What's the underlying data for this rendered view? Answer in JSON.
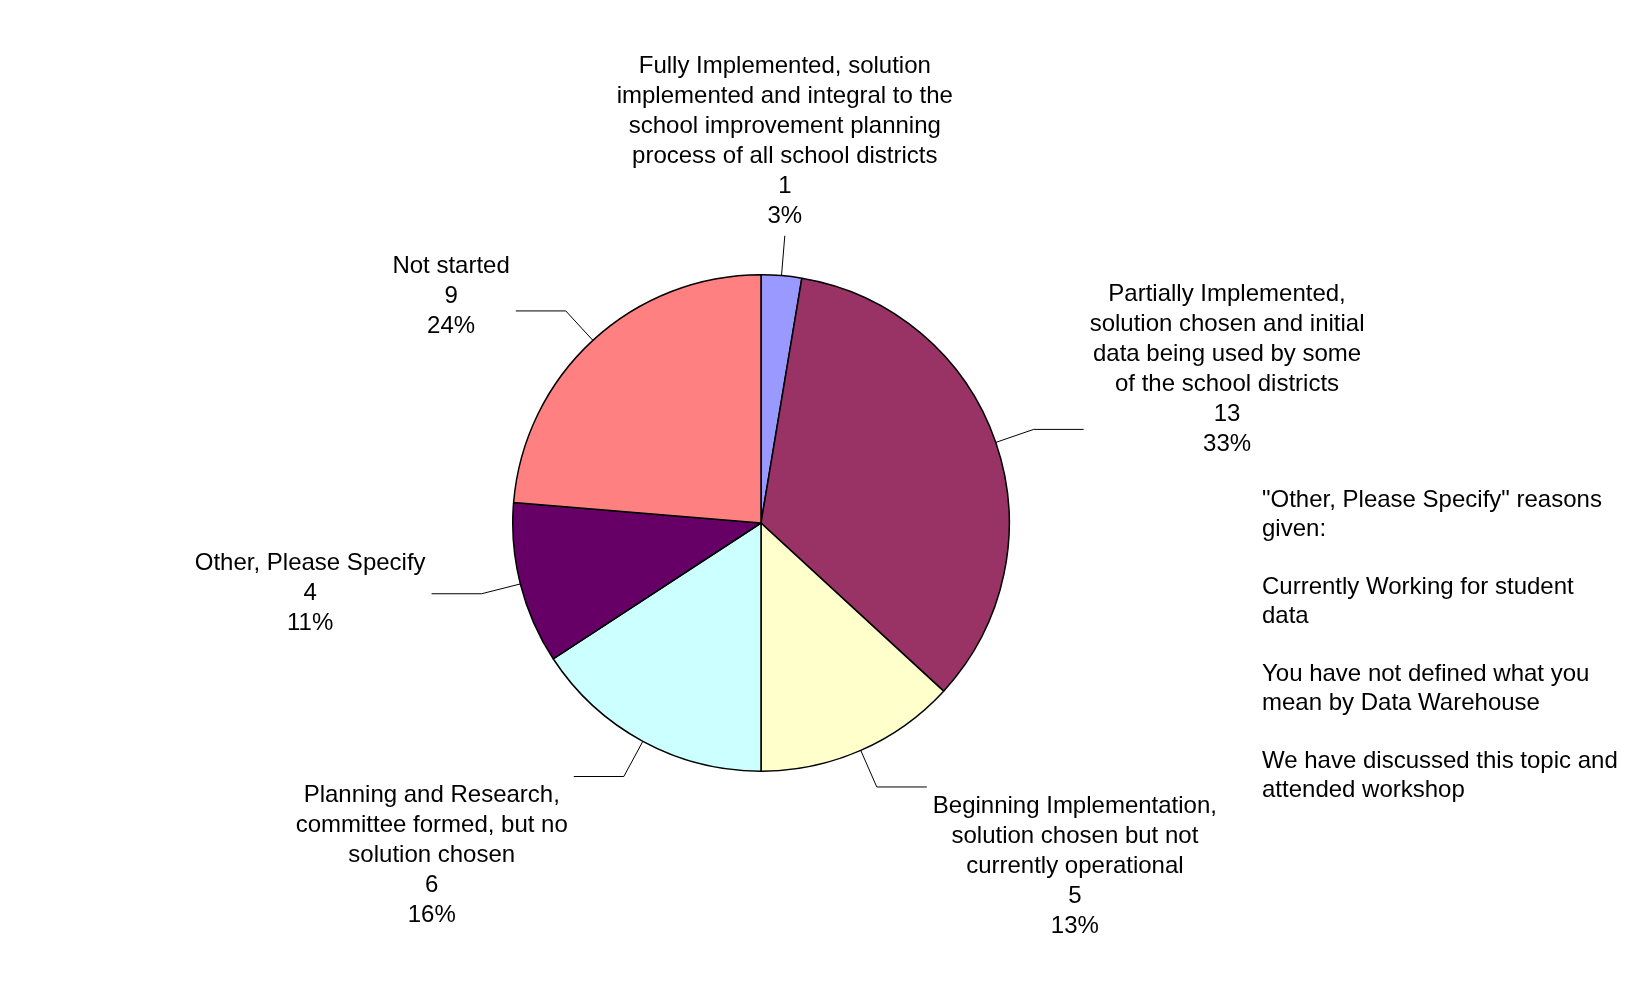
{
  "chart_data": {
    "type": "pie",
    "categories": [
      "Fully Implemented, solution implemented and integral to the school improvement planning process of all school districts",
      "Partially Implemented, solution chosen and initial data being used by some of the school districts",
      "Beginning Implementation, solution chosen but not currently operational",
      "Planning and Research, committee formed, but no solution chosen",
      "Other, Please Specify",
      "Not started"
    ],
    "values": [
      1,
      13,
      5,
      6,
      4,
      9
    ],
    "colors": [
      "#9999ff",
      "#993366",
      "#ffffcc",
      "#ccffff",
      "#660066",
      "#ff8080"
    ],
    "value_labels": [
      "1\n3%",
      "13\n33%",
      "5\n13%",
      "6\n16%",
      "4\n11%",
      "9\n24%"
    ],
    "annotations": [
      "\"Other, Please Specify\" reasons given:",
      "Currently Working for student data",
      "You have not defined what you mean by Data Warehouse",
      "We have discussed this topic and attended workshop"
    ]
  }
}
